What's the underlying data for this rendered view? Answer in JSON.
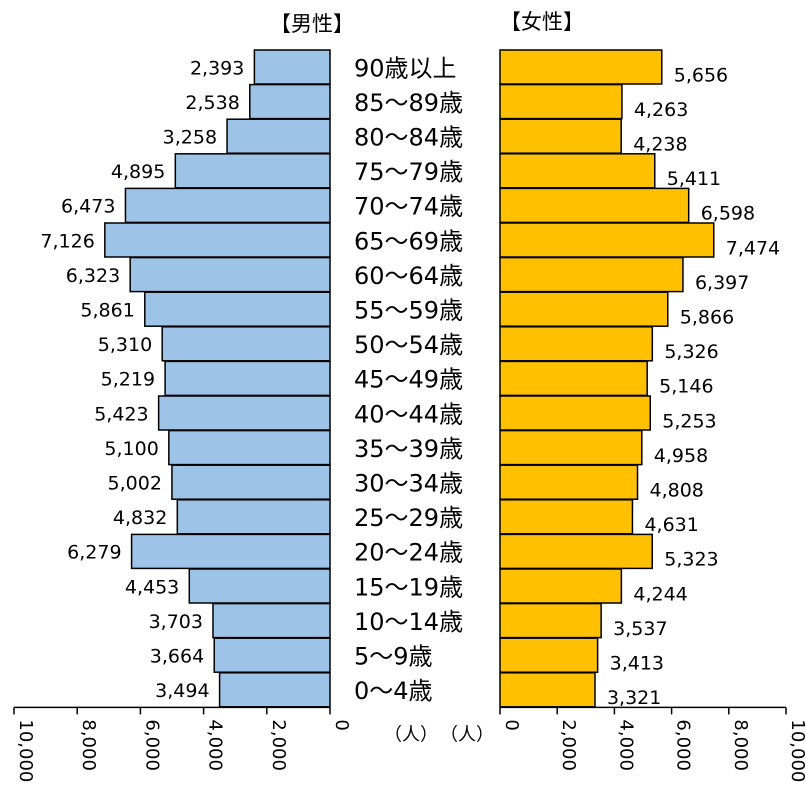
{
  "titles": {
    "male": "【男性】",
    "female": "【女性】"
  },
  "units": {
    "male": "（人）",
    "female": "（人）"
  },
  "colors": {
    "male": "#9DC3E6",
    "female": "#FFC000",
    "outline": "#000000"
  },
  "chart_data": {
    "type": "bar",
    "orientation": "horizontal-population-pyramid",
    "categories": [
      "90歳以上",
      "85～89歳",
      "80～84歳",
      "75～79歳",
      "70～74歳",
      "65～69歳",
      "60～64歳",
      "55～59歳",
      "50～54歳",
      "45～49歳",
      "40～44歳",
      "35～39歳",
      "30～34歳",
      "25～29歳",
      "20～24歳",
      "15～19歳",
      "10～14歳",
      "5～9歳",
      "0～4歳"
    ],
    "series": [
      {
        "name": "【男性】",
        "values": [
          2393,
          2538,
          3258,
          4895,
          6473,
          7126,
          6323,
          5861,
          5310,
          5219,
          5423,
          5100,
          5002,
          4832,
          6279,
          4453,
          3703,
          3664,
          3494
        ]
      },
      {
        "name": "【女性】",
        "values": [
          5656,
          4263,
          4238,
          5411,
          6598,
          7474,
          6397,
          5866,
          5326,
          5146,
          5253,
          4958,
          4808,
          4631,
          5323,
          4244,
          3537,
          3413,
          3321
        ]
      }
    ],
    "axis": {
      "range": [
        0,
        10000
      ],
      "ticks": [
        0,
        2000,
        4000,
        6000,
        8000,
        10000
      ],
      "tick_labels": [
        "0",
        "2,000",
        "4,000",
        "6,000",
        "8,000",
        "10,000"
      ]
    }
  }
}
